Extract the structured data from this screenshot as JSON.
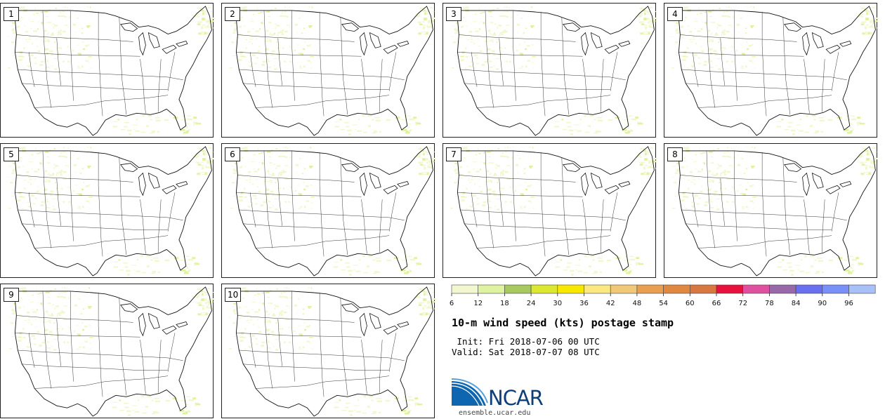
{
  "panels": [
    {
      "label": "1"
    },
    {
      "label": "2"
    },
    {
      "label": "3"
    },
    {
      "label": "4"
    },
    {
      "label": "5"
    },
    {
      "label": "6"
    },
    {
      "label": "7"
    },
    {
      "label": "8"
    },
    {
      "label": "9"
    },
    {
      "label": "10"
    }
  ],
  "colorbar": {
    "ticks": [
      "6",
      "12",
      "18",
      "24",
      "30",
      "36",
      "42",
      "48",
      "54",
      "60",
      "66",
      "72",
      "78",
      "84",
      "90",
      "96"
    ],
    "colors": [
      "#f2f7d0",
      "#dff2a0",
      "#a8c860",
      "#dce830",
      "#f8e800",
      "#fce880",
      "#f0c878",
      "#e8a050",
      "#e08840",
      "#d87840",
      "#e8103c",
      "#e050a0",
      "#9868a8",
      "#6870f0",
      "#7890f8",
      "#a8c0f8"
    ]
  },
  "title": "10-m wind speed (kts) postage stamp",
  "init": " Init: Fri 2018-07-06 00 UTC",
  "valid": "Valid: Sat 2018-07-07 08 UTC",
  "logo": {
    "text": "NCAR",
    "site": "ensemble.ucar.edu"
  }
}
